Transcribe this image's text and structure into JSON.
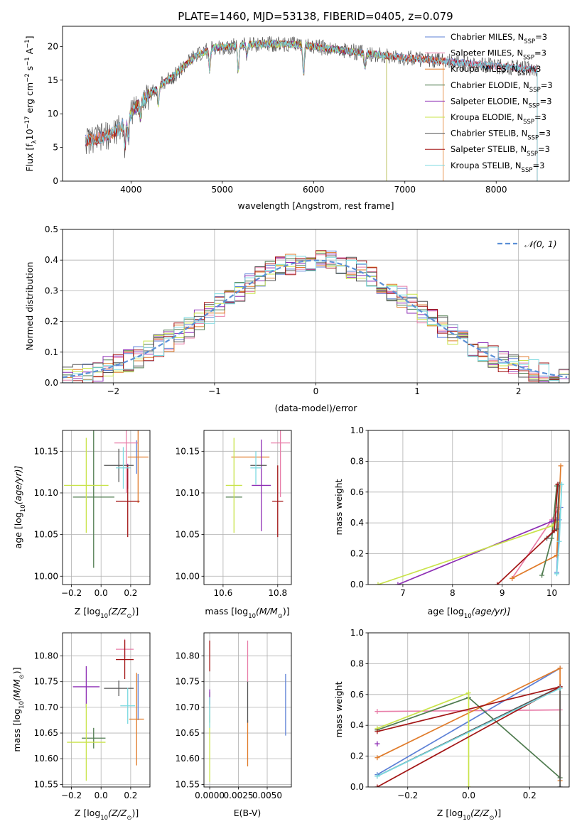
{
  "figure": {
    "title": "PLATE=1460, MJD=53138, FIBERID=0405, z=0.079"
  },
  "colors": {
    "chabrier_miles": "#5b7fd6",
    "salpeter_miles": "#e87da8",
    "kroupa_miles": "#e07b2a",
    "chabrier_elodie": "#4f7b4f",
    "salpeter_elodie": "#8e2fb5",
    "kroupa_elodie": "#c9e34a",
    "chabrier_stelib": "#555555",
    "salpeter_stelib": "#a31515",
    "kroupa_stelib": "#7ad9e0",
    "normal_curve": "#5b8fd6",
    "grid": "#b0b0b0"
  },
  "chart_data": [
    {
      "id": "spectrum",
      "type": "line",
      "title": "PLATE=1460, MJD=53138, FIBERID=0405, z=0.079",
      "xlabel": "wavelength [Angstrom, rest frame]",
      "ylabel_main": "Flux [f",
      "ylabel_sub": "λ",
      "ylabel_rest": "10",
      "ylabel_exp": "−17",
      "ylabel_units": " erg cm",
      "ylabel_units_exp": "−2",
      "ylabel_units2": " s",
      "ylabel_units2_exp": "−1",
      "ylabel_units3": " A",
      "ylabel_units3_exp": "−1",
      "ylabel_end": "]",
      "xlim": [
        3250,
        8800
      ],
      "ylim": [
        0,
        23
      ],
      "xticks": [
        4000,
        5000,
        6000,
        7000,
        8000
      ],
      "yticks": [
        0,
        5,
        10,
        15,
        20
      ],
      "grid": false,
      "legend_position": "top-right",
      "continuum": [
        [
          3500,
          6.0
        ],
        [
          3700,
          6.5
        ],
        [
          3850,
          7.5
        ],
        [
          3950,
          9.0
        ],
        [
          4050,
          11.0
        ],
        [
          4300,
          14.0
        ],
        [
          4500,
          16.0
        ],
        [
          4700,
          18.5
        ],
        [
          4900,
          19.8
        ],
        [
          5100,
          20.0
        ],
        [
          5300,
          20.3
        ],
        [
          5600,
          20.4
        ],
        [
          5900,
          20.2
        ],
        [
          6100,
          19.8
        ],
        [
          6400,
          19.3
        ],
        [
          6700,
          18.8
        ],
        [
          7000,
          18.3
        ],
        [
          7300,
          18.0
        ],
        [
          7600,
          17.6
        ],
        [
          8000,
          17.1
        ],
        [
          8450,
          16.6
        ]
      ],
      "dips": [
        [
          3934,
          3.5
        ],
        [
          3969,
          3.0
        ],
        [
          4102,
          2.0
        ],
        [
          4300,
          2.5
        ],
        [
          4861,
          3.0
        ],
        [
          5175,
          3.5
        ],
        [
          5270,
          1.5
        ],
        [
          5890,
          4.0
        ],
        [
          6563,
          2.0
        ]
      ],
      "series": [
        {
          "name": "Chabrier MILES, N",
          "sub": "SSP",
          "suffix": "=3",
          "color_key": "chabrier_miles",
          "range": [
            3500,
            8450
          ]
        },
        {
          "name": "Salpeter MILES, N",
          "sub": "SSP",
          "suffix": "=3",
          "color_key": "salpeter_miles",
          "range": [
            3500,
            8450
          ]
        },
        {
          "name": "Kroupa MILES, N",
          "sub": "SSP",
          "suffix": "=3",
          "color_key": "kroupa_miles",
          "range": [
            3500,
            7420
          ]
        },
        {
          "name": "Chabrier ELODIE, N",
          "sub": "SSP",
          "suffix": "=3",
          "color_key": "chabrier_elodie",
          "range": [
            3900,
            6800
          ]
        },
        {
          "name": "Salpeter ELODIE, N",
          "sub": "SSP",
          "suffix": "=3",
          "color_key": "salpeter_elodie",
          "range": [
            3900,
            6800
          ]
        },
        {
          "name": "Kroupa ELODIE, N",
          "sub": "SSP",
          "suffix": "=3",
          "color_key": "kroupa_elodie",
          "range": [
            3920,
            6800
          ]
        },
        {
          "name": "Chabrier STELIB, N",
          "sub": "SSP",
          "suffix": "=3",
          "color_key": "chabrier_stelib",
          "range": [
            3500,
            8450
          ]
        },
        {
          "name": "Salpeter STELIB, N",
          "sub": "SSP",
          "suffix": "=3",
          "color_key": "salpeter_stelib",
          "range": [
            3500,
            8450
          ]
        },
        {
          "name": "Kroupa STELIB, N",
          "sub": "SSP",
          "suffix": "=3",
          "color_key": "kroupa_stelib",
          "range": [
            3500,
            8450
          ]
        }
      ]
    },
    {
      "id": "residuals",
      "type": "histogram",
      "xlabel": "(data-model)/error",
      "ylabel": "Normed distribution",
      "xlim": [
        -2.5,
        2.5
      ],
      "ylim": [
        0,
        0.5
      ],
      "xticks": [
        -2,
        -1,
        0,
        1,
        2
      ],
      "yticks": [
        0.0,
        0.1,
        0.2,
        0.3,
        0.4,
        0.5
      ],
      "grid": true,
      "bin_width": 0.1,
      "legend_position": "top-right",
      "normal_label": "𝒩(0, 1)",
      "normal_mu": 0,
      "normal_sigma": 1
    },
    {
      "id": "age_vs_Z",
      "type": "scatter",
      "xlabel_main": "Z [log",
      "xlabel_sub": "10",
      "xlabel_rest": "(Z/Z",
      "xlabel_sun": "⊙",
      "xlabel_end": ")]",
      "ylabel_main": "age  [log",
      "ylabel_sub": "10",
      "ylabel_rest": "(age/yr)]",
      "xlim": [
        -0.26,
        0.33
      ],
      "ylim": [
        9.99,
        10.175
      ],
      "xticks": [
        -0.2,
        0.0,
        0.2
      ],
      "yticks": [
        10.0,
        10.05,
        10.1,
        10.15
      ],
      "grid": true,
      "points": [
        {
          "series": "Chabrier MILES",
          "x": 0.24,
          "y": 10.143,
          "xerr": 0.0,
          "yerr": 0.02
        },
        {
          "series": "Salpeter MILES",
          "x": 0.17,
          "y": 10.16,
          "xerr": 0.08,
          "yerr": 0.06
        },
        {
          "series": "Kroupa MILES",
          "x": 0.25,
          "y": 10.143,
          "xerr": 0.07,
          "yerr": 0.055
        },
        {
          "series": "Chabrier ELODIE",
          "x": -0.05,
          "y": 10.095,
          "xerr": 0.14,
          "yerr": 0.085
        },
        {
          "series": "Salpeter ELODIE",
          "x": 0.18,
          "y": 10.12,
          "xerr": 0.0,
          "yerr": 0.015
        },
        {
          "series": "Kroupa ELODIE",
          "x": -0.1,
          "y": 10.109,
          "xerr": 0.15,
          "yerr": 0.057
        },
        {
          "series": "Chabrier STELIB",
          "x": 0.12,
          "y": 10.133,
          "xerr": 0.1,
          "yerr": 0.02
        },
        {
          "series": "Salpeter STELIB",
          "x": 0.18,
          "y": 10.09,
          "xerr": 0.08,
          "yerr": 0.043
        },
        {
          "series": "Kroupa STELIB",
          "x": 0.15,
          "y": 10.13,
          "xerr": 0.05,
          "yerr": 0.025
        }
      ]
    },
    {
      "id": "age_vs_mass",
      "type": "scatter",
      "xlabel_main": "mass [log",
      "xlabel_sub": "10",
      "xlabel_rest": "(M/M",
      "xlabel_sun": "⊙",
      "xlabel_end": ")]",
      "xlim": [
        10.53,
        10.85
      ],
      "ylim": [
        9.99,
        10.175
      ],
      "xticks": [
        10.6,
        10.8
      ],
      "yticks": [
        10.0,
        10.05,
        10.1,
        10.15
      ],
      "grid": true,
      "points": [
        {
          "series": "Chabrier MILES",
          "x": 10.7,
          "y": 10.143,
          "xerr": 0.0,
          "yerr": 0.0
        },
        {
          "series": "Salpeter MILES",
          "x": 10.81,
          "y": 10.16,
          "xerr": 0.035,
          "yerr": 0.065
        },
        {
          "series": "Kroupa MILES",
          "x": 10.7,
          "y": 10.143,
          "xerr": 0.07,
          "yerr": 0.0
        },
        {
          "series": "Chabrier ELODIE",
          "x": 10.64,
          "y": 10.095,
          "xerr": 0.03,
          "yerr": 0.0
        },
        {
          "series": "Salpeter ELODIE",
          "x": 10.74,
          "y": 10.109,
          "xerr": 0.035,
          "yerr": 0.055
        },
        {
          "series": "Kroupa ELODIE",
          "x": 10.64,
          "y": 10.109,
          "xerr": 0.03,
          "yerr": 0.057
        },
        {
          "series": "Chabrier STELIB",
          "x": 10.73,
          "y": 10.133,
          "xerr": 0.03,
          "yerr": 0.0
        },
        {
          "series": "Salpeter STELIB",
          "x": 10.8,
          "y": 10.09,
          "xerr": 0.02,
          "yerr": 0.043
        },
        {
          "series": "Kroupa STELIB",
          "x": 10.72,
          "y": 10.13,
          "xerr": 0.02,
          "yerr": 0.02
        }
      ]
    },
    {
      "id": "weight_vs_age",
      "type": "line",
      "xlabel_main": "age  [log",
      "xlabel_sub": "10",
      "xlabel_rest": "(age/yr)]",
      "ylabel": "mass weight",
      "xlim": [
        6.3,
        10.35
      ],
      "ylim": [
        0,
        1.0
      ],
      "xticks": [
        7,
        8,
        9,
        10
      ],
      "yticks": [
        0.0,
        0.2,
        0.4,
        0.6,
        0.8,
        1.0
      ],
      "grid": true,
      "series": [
        {
          "name": "Chabrier MILES",
          "points": [
            [
              10.1,
              0.08
            ],
            [
              10.15,
              0.42
            ],
            [
              10.18,
              0.5
            ]
          ]
        },
        {
          "name": "Salpeter MILES",
          "points": [
            [
              9.2,
              0.04
            ],
            [
              10.0,
              0.42
            ],
            [
              10.15,
              0.5
            ]
          ]
        },
        {
          "name": "Kroupa MILES",
          "points": [
            [
              9.2,
              0.04
            ],
            [
              10.1,
              0.19
            ],
            [
              10.18,
              0.77
            ]
          ]
        },
        {
          "name": "Chabrier ELODIE",
          "points": [
            [
              9.8,
              0.06
            ],
            [
              10.0,
              0.3
            ],
            [
              10.1,
              0.64
            ]
          ]
        },
        {
          "name": "Salpeter ELODIE",
          "points": [
            [
              6.9,
              0.0
            ],
            [
              10.0,
              0.41
            ],
            [
              10.1,
              0.42
            ]
          ]
        },
        {
          "name": "Kroupa ELODIE",
          "points": [
            [
              6.5,
              0.0
            ],
            [
              10.0,
              0.38
            ],
            [
              10.1,
              0.41
            ]
          ]
        },
        {
          "name": "Chabrier STELIB",
          "points": [
            [
              9.9,
              0.3
            ],
            [
              10.1,
              0.36
            ],
            [
              10.15,
              0.65
            ]
          ]
        },
        {
          "name": "Salpeter STELIB",
          "points": [
            [
              8.9,
              0.0
            ],
            [
              10.05,
              0.35
            ],
            [
              10.12,
              0.65
            ]
          ]
        },
        {
          "name": "Kroupa STELIB",
          "points": [
            [
              10.1,
              0.07
            ],
            [
              10.15,
              0.28
            ],
            [
              10.2,
              0.65
            ]
          ]
        }
      ]
    },
    {
      "id": "mass_vs_Z",
      "type": "scatter",
      "xlabel_main": "Z [log",
      "xlabel_sub": "10",
      "xlabel_rest": "(Z/Z",
      "xlabel_sun": "⊙",
      "xlabel_end": ")]",
      "ylabel_main": "mass [log",
      "ylabel_sub": "10",
      "ylabel_rest": "(M/M",
      "ylabel_sun": "⊙",
      "ylabel_end": ")]",
      "xlim": [
        -0.26,
        0.33
      ],
      "ylim": [
        10.545,
        10.845
      ],
      "xticks": [
        -0.2,
        0.0,
        0.2
      ],
      "yticks": [
        10.55,
        10.6,
        10.65,
        10.7,
        10.75,
        10.8
      ],
      "grid": true,
      "points": [
        {
          "series": "Chabrier MILES",
          "x": 0.25,
          "y": 10.72,
          "xerr": 0.0,
          "yerr": 0.045
        },
        {
          "series": "Salpeter MILES",
          "x": 0.16,
          "y": 10.813,
          "xerr": 0.06,
          "yerr": 0.02
        },
        {
          "series": "Kroupa MILES",
          "x": 0.24,
          "y": 10.677,
          "xerr": 0.05,
          "yerr": 0.09
        },
        {
          "series": "Chabrier ELODIE",
          "x": -0.05,
          "y": 10.64,
          "xerr": 0.08,
          "yerr": 0.02
        },
        {
          "series": "Salpeter ELODIE",
          "x": -0.1,
          "y": 10.74,
          "xerr": 0.09,
          "yerr": 0.04
        },
        {
          "series": "Kroupa ELODIE",
          "x": -0.1,
          "y": 10.632,
          "xerr": 0.13,
          "yerr": 0.075
        },
        {
          "series": "Chabrier STELIB",
          "x": 0.12,
          "y": 10.737,
          "xerr": 0.1,
          "yerr": 0.015
        },
        {
          "series": "Salpeter STELIB",
          "x": 0.16,
          "y": 10.793,
          "xerr": 0.06,
          "yerr": 0.038
        },
        {
          "series": "Kroupa STELIB",
          "x": 0.18,
          "y": 10.703,
          "xerr": 0.05,
          "yerr": 0.035
        }
      ]
    },
    {
      "id": "mass_vs_ebv",
      "type": "scatter",
      "xlabel": "E(B-V)",
      "xlim": [
        -0.0005,
        0.0071
      ],
      "ylim": [
        10.545,
        10.845
      ],
      "xticks": [
        0.0,
        0.0025,
        0.005
      ],
      "xtick_labels": [
        "0.0000",
        "0.0025",
        "0.0050"
      ],
      "yticks": [
        10.55,
        10.6,
        10.65,
        10.7,
        10.75,
        10.8
      ],
      "grid": true,
      "points": [
        {
          "series": "Chabrier MILES",
          "x": 0.0066,
          "y": 10.705,
          "xerr": 0.0,
          "yerr": 0.06
        },
        {
          "series": "Salpeter MILES",
          "x": 0.0033,
          "y": 10.79,
          "xerr": 0.0,
          "yerr": 0.04
        },
        {
          "series": "Kroupa MILES",
          "x": 0.0033,
          "y": 10.63,
          "xerr": 0.0,
          "yerr": 0.045
        },
        {
          "series": "Chabrier ELODIE",
          "x": 0.0,
          "y": 10.7,
          "xerr": 0.0,
          "yerr": 0.03
        },
        {
          "series": "Salpeter ELODIE",
          "x": 0.0,
          "y": 10.72,
          "xerr": 0.0,
          "yerr": 0.015
        },
        {
          "series": "Kroupa ELODIE",
          "x": 0.0,
          "y": 10.62,
          "xerr": 0.0,
          "yerr": 0.065
        },
        {
          "series": "Chabrier STELIB",
          "x": 0.0033,
          "y": 10.71,
          "xerr": 0.0,
          "yerr": 0.04
        },
        {
          "series": "Salpeter STELIB",
          "x": 0.0,
          "y": 10.8,
          "xerr": 0.0,
          "yerr": 0.03
        },
        {
          "series": "Kroupa STELIB",
          "x": 0.0,
          "y": 10.69,
          "xerr": 0.0,
          "yerr": 0.03
        }
      ]
    },
    {
      "id": "weight_vs_Z",
      "type": "line",
      "xlabel_main": "Z [log",
      "xlabel_sub": "10",
      "xlabel_rest": "(Z/Z",
      "xlabel_sun": "⊙",
      "xlabel_end": ")]",
      "ylabel": "mass weight",
      "xlim": [
        -0.33,
        0.33
      ],
      "ylim": [
        0,
        1.0
      ],
      "xticks": [
        -0.2,
        0.0,
        0.2
      ],
      "yticks": [
        0.0,
        0.2,
        0.4,
        0.6,
        0.8,
        1.0
      ],
      "grid": true,
      "series": [
        {
          "name": "Chabrier MILES",
          "points": [
            [
              -0.3,
              0.08
            ],
            [
              0.3,
              0.77
            ]
          ]
        },
        {
          "name": "Salpeter MILES",
          "points": [
            [
              -0.3,
              0.49
            ],
            [
              0.3,
              0.5
            ]
          ]
        },
        {
          "name": "Kroupa MILES",
          "points": [
            [
              -0.3,
              0.19
            ],
            [
              0.3,
              0.77
            ],
            [
              0.3,
              0.04
            ]
          ]
        },
        {
          "name": "Chabrier ELODIE",
          "points": [
            [
              -0.3,
              0.37
            ],
            [
              0.0,
              0.58
            ],
            [
              0.3,
              0.06
            ]
          ]
        },
        {
          "name": "Salpeter ELODIE",
          "points": [
            [
              -0.3,
              0.28
            ],
            [
              -0.3,
              0.28
            ]
          ]
        },
        {
          "name": "Kroupa ELODIE",
          "points": [
            [
              -0.3,
              0.38
            ],
            [
              0.0,
              0.61
            ],
            [
              0.0,
              0.0
            ]
          ]
        },
        {
          "name": "Chabrier STELIB",
          "points": [
            [
              -0.3,
              0.07
            ],
            [
              0.3,
              0.65
            ],
            [
              0.3,
              0.0
            ]
          ]
        },
        {
          "name": "Salpeter STELIB",
          "points": [
            [
              -0.3,
              0.0
            ],
            [
              0.3,
              0.65
            ],
            [
              -0.3,
              0.36
            ]
          ]
        },
        {
          "name": "Kroupa STELIB",
          "points": [
            [
              -0.3,
              0.07
            ],
            [
              0.3,
              0.64
            ]
          ]
        }
      ]
    }
  ]
}
